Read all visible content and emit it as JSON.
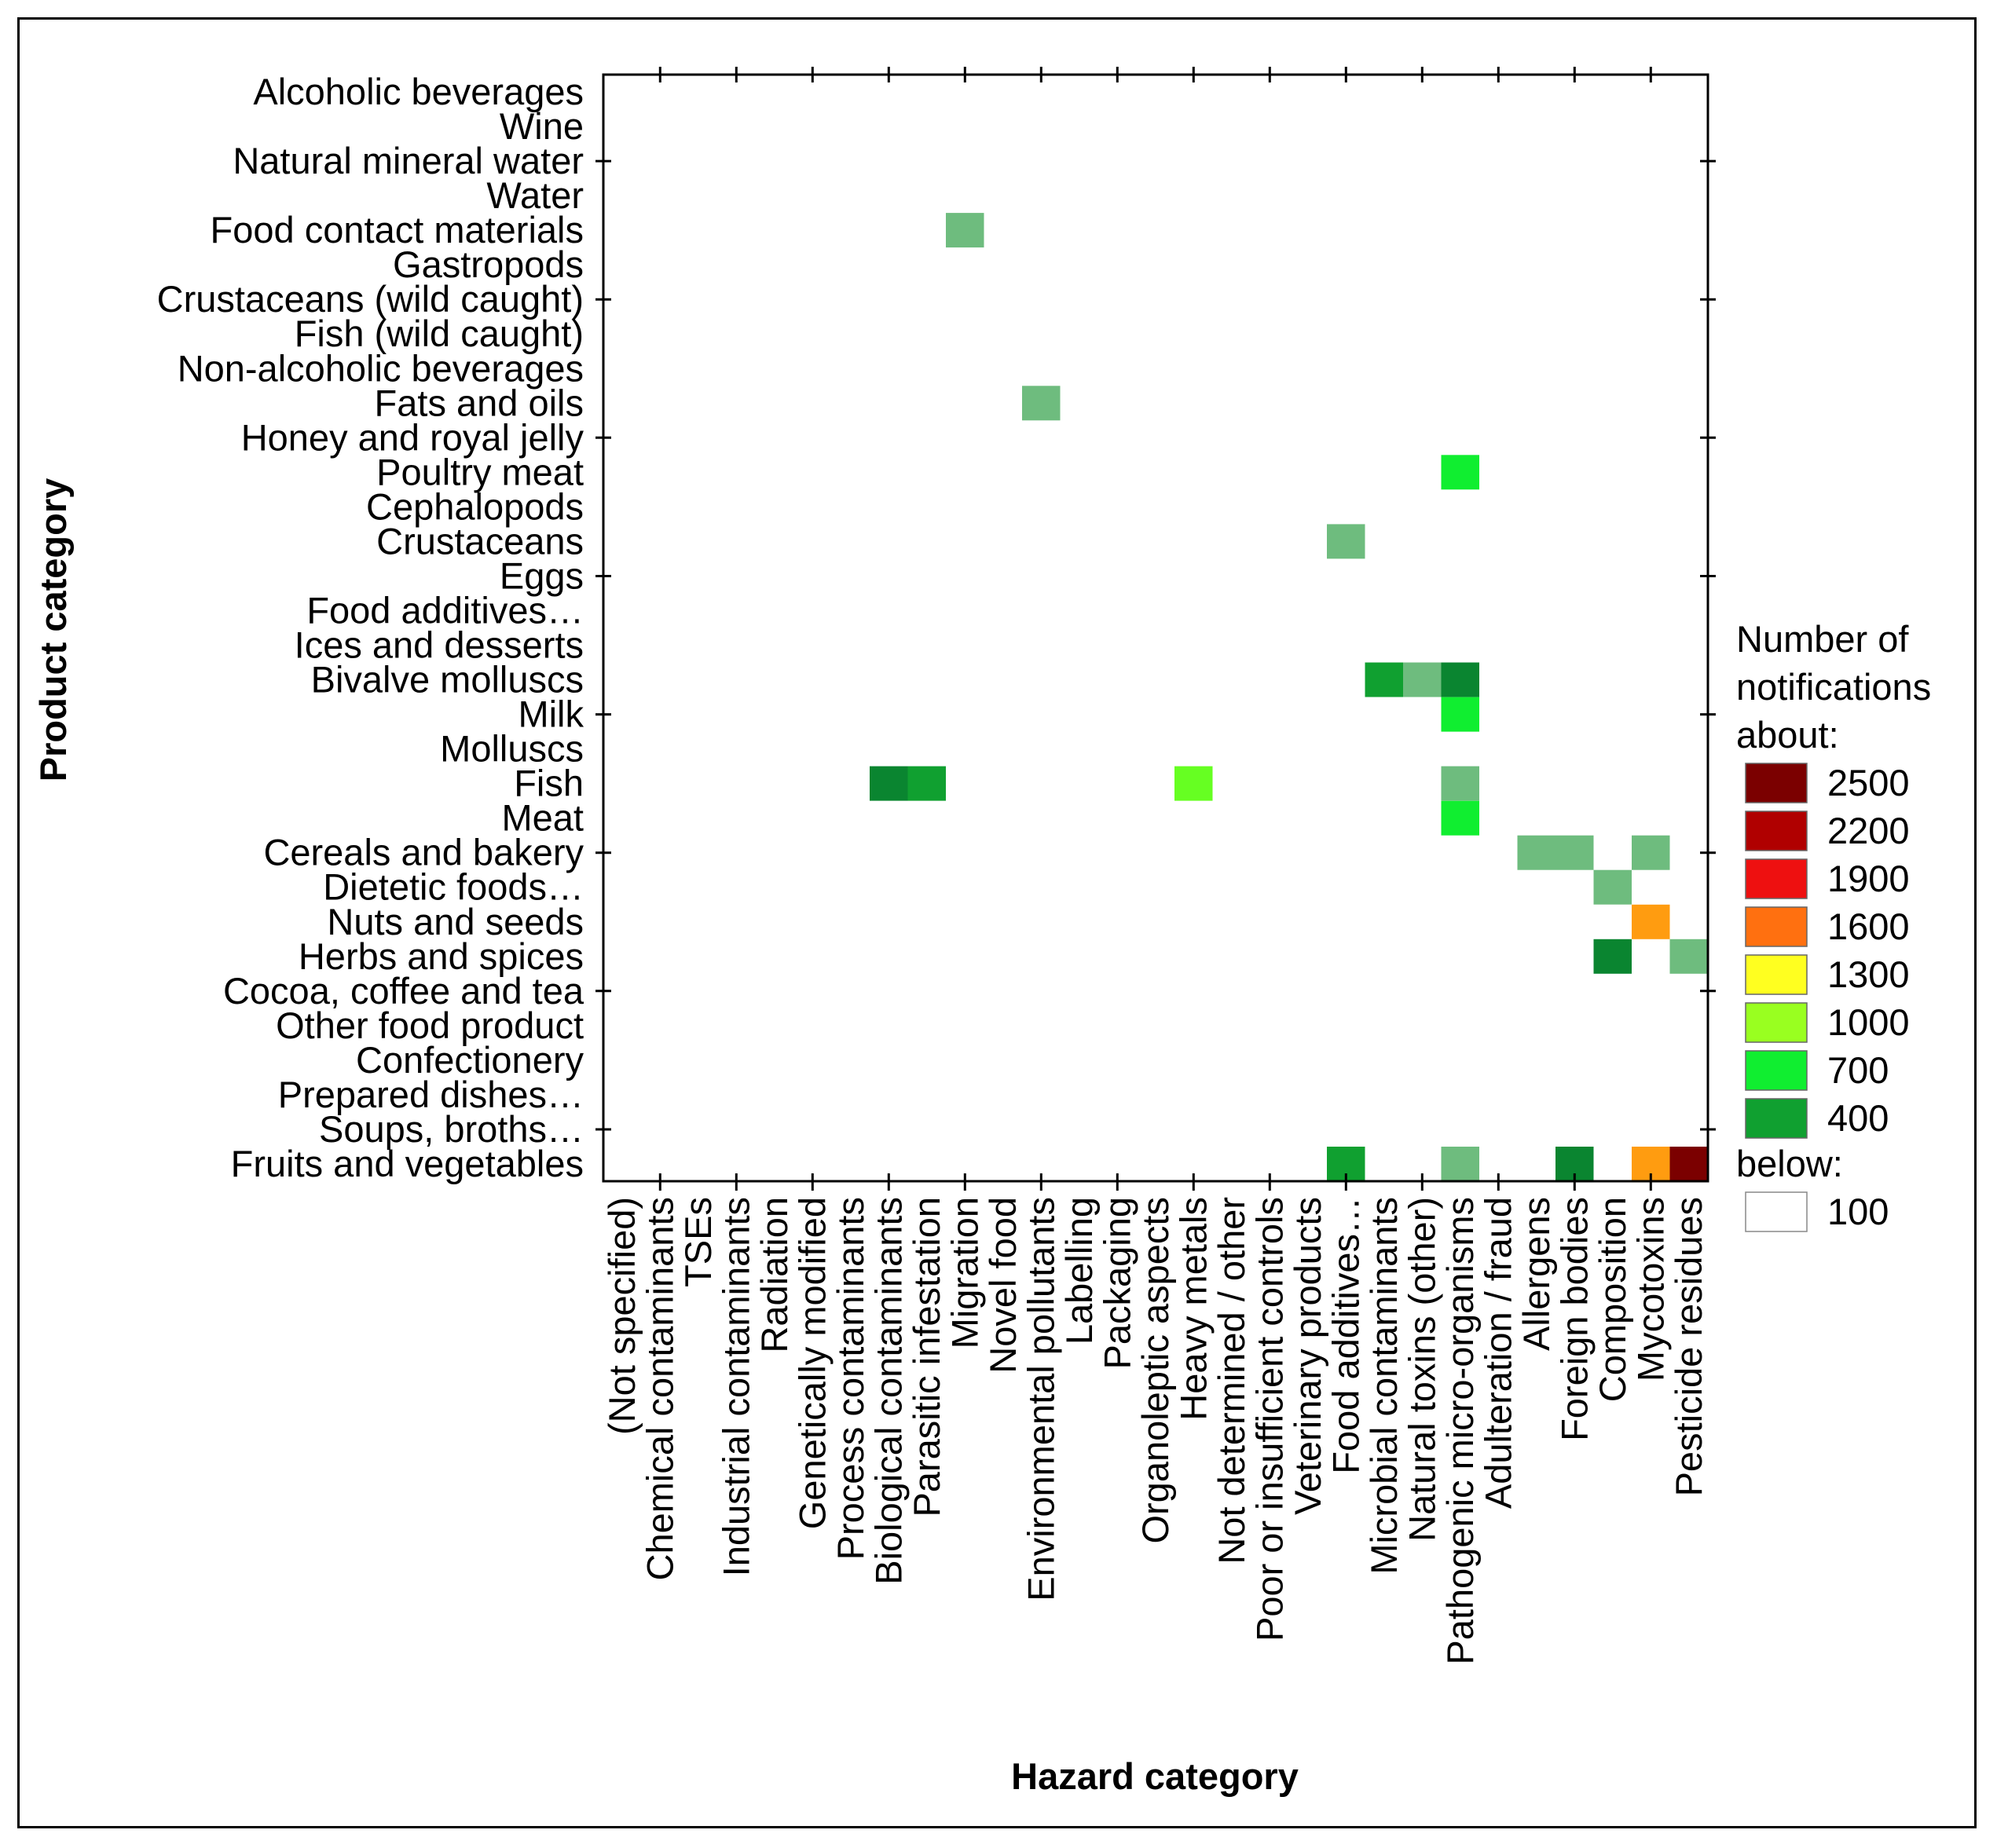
{
  "chart_data": {
    "type": "heatmap",
    "title": "",
    "xlabel": "Hazard category",
    "ylabel": "Product category",
    "rows": [
      "Alcoholic beverages",
      "Wine",
      "Natural mineral water",
      "Water",
      "Food contact materials",
      "Gastropods",
      "Crustaceans (wild caught)",
      "Fish (wild caught)",
      "Non-alcoholic beverages",
      "Fats and oils",
      "Honey and royal jelly",
      "Poultry meat",
      "Cephalopods",
      "Crustaceans",
      "Eggs",
      "Food additives…",
      "Ices and desserts",
      "Bivalve molluscs",
      "Milk",
      "Molluscs",
      "Fish",
      "Meat",
      "Cereals and bakery",
      "Dietetic foods…",
      "Nuts and seeds",
      "Herbs and spices",
      "Cocoa, coffee and tea",
      "Other food product",
      "Confectionery",
      "Prepared dishes…",
      "Soups, broths…",
      "Fruits and vegetables"
    ],
    "columns": [
      "(Not specified)",
      "Chemical contaminants",
      "TSEs",
      "Industrial contaminants",
      "Radiation",
      "Genetically modified",
      "Process contaminants",
      "Biological contaminants",
      "Parasitic infestation",
      "Migration",
      "Novel food",
      "Environmental pollutants",
      "Labelling",
      "Packaging",
      "Organoleptic aspects",
      "Heavy metals",
      "Not determined / other",
      "Poor or insufficient controls",
      "Veterinary products",
      "Food additives…",
      "Microbial contaminants",
      "Natural toxins (other)",
      "Pathogenic micro-organisms",
      "Adulteration / fraud",
      "Allergens",
      "Foreign bodies",
      "Composition",
      "Mycotoxins",
      "Pesticide residues"
    ],
    "cells": [
      {
        "row": "Food contact materials",
        "col": "Migration",
        "value": 150
      },
      {
        "row": "Fats and oils",
        "col": "Environmental pollutants",
        "value": 150
      },
      {
        "row": "Poultry meat",
        "col": "Pathogenic micro-organisms",
        "value": 550
      },
      {
        "row": "Crustaceans",
        "col": "Food additives…",
        "value": 150
      },
      {
        "row": "Bivalve molluscs",
        "col": "Microbial contaminants",
        "value": 400
      },
      {
        "row": "Bivalve molluscs",
        "col": "Natural toxins (other)",
        "value": 150
      },
      {
        "row": "Bivalve molluscs",
        "col": "Pathogenic micro-organisms",
        "value": 250
      },
      {
        "row": "Milk",
        "col": "Pathogenic micro-organisms",
        "value": 700
      },
      {
        "row": "Fish",
        "col": "Biological contaminants",
        "value": 250
      },
      {
        "row": "Fish",
        "col": "Parasitic infestation",
        "value": 400
      },
      {
        "row": "Fish",
        "col": "Heavy metals",
        "value": 1000
      },
      {
        "row": "Fish",
        "col": "Pathogenic micro-organisms",
        "value": 150
      },
      {
        "row": "Meat",
        "col": "Pathogenic micro-organisms",
        "value": 700
      },
      {
        "row": "Cereals and bakery",
        "col": "Allergens",
        "value": 150
      },
      {
        "row": "Cereals and bakery",
        "col": "Foreign bodies",
        "value": 150
      },
      {
        "row": "Cereals and bakery",
        "col": "Mycotoxins",
        "value": 150
      },
      {
        "row": "Dietetic foods…",
        "col": "Composition",
        "value": 150
      },
      {
        "row": "Nuts and seeds",
        "col": "Mycotoxins",
        "value": 1600
      },
      {
        "row": "Herbs and spices",
        "col": "Composition",
        "value": 250
      },
      {
        "row": "Herbs and spices",
        "col": "Pesticide residues",
        "value": 150
      },
      {
        "row": "Fruits and vegetables",
        "col": "Food additives…",
        "value": 400
      },
      {
        "row": "Fruits and vegetables",
        "col": "Pathogenic micro-organisms",
        "value": 150
      },
      {
        "row": "Fruits and vegetables",
        "col": "Foreign bodies",
        "value": 250
      },
      {
        "row": "Fruits and vegetables",
        "col": "Mycotoxins",
        "value": 1600
      },
      {
        "row": "Fruits and vegetables",
        "col": "Pesticide residues",
        "value": 2500
      }
    ],
    "legend": {
      "title_lines": [
        "Number of",
        "notifications",
        "about:"
      ],
      "levels": [
        {
          "label": "2500",
          "color": "#7b0000"
        },
        {
          "label": "2200",
          "color": "#b00000"
        },
        {
          "label": "1900",
          "color": "#ee1010"
        },
        {
          "label": "1600",
          "color": "#ff7010"
        },
        {
          "label": "1300",
          "color": "#ffff20"
        },
        {
          "label": "1000",
          "color": "#99ff20"
        },
        {
          "label": "700",
          "color": "#10ee30"
        },
        {
          "label": "400",
          "color": "#10a030"
        }
      ],
      "below_label": "below:",
      "below_value": "100",
      "below_color": "#ffffff"
    },
    "scale_colors": [
      {
        "min": 100,
        "max": 200,
        "color": "#6ebc7e"
      },
      {
        "min": 200,
        "max": 300,
        "color": "#0a8530"
      },
      {
        "min": 300,
        "max": 550,
        "color": "#10a030"
      },
      {
        "min": 550,
        "max": 850,
        "color": "#10ee30"
      },
      {
        "min": 850,
        "max": 1150,
        "color": "#66ff22"
      },
      {
        "min": 1150,
        "max": 1450,
        "color": "#ffff20"
      },
      {
        "min": 1450,
        "max": 1750,
        "color": "#ff9c10"
      },
      {
        "min": 1750,
        "max": 2050,
        "color": "#ee1010"
      },
      {
        "min": 2050,
        "max": 2350,
        "color": "#b00000"
      },
      {
        "min": 2350,
        "max": 99999,
        "color": "#7b0000"
      }
    ]
  }
}
